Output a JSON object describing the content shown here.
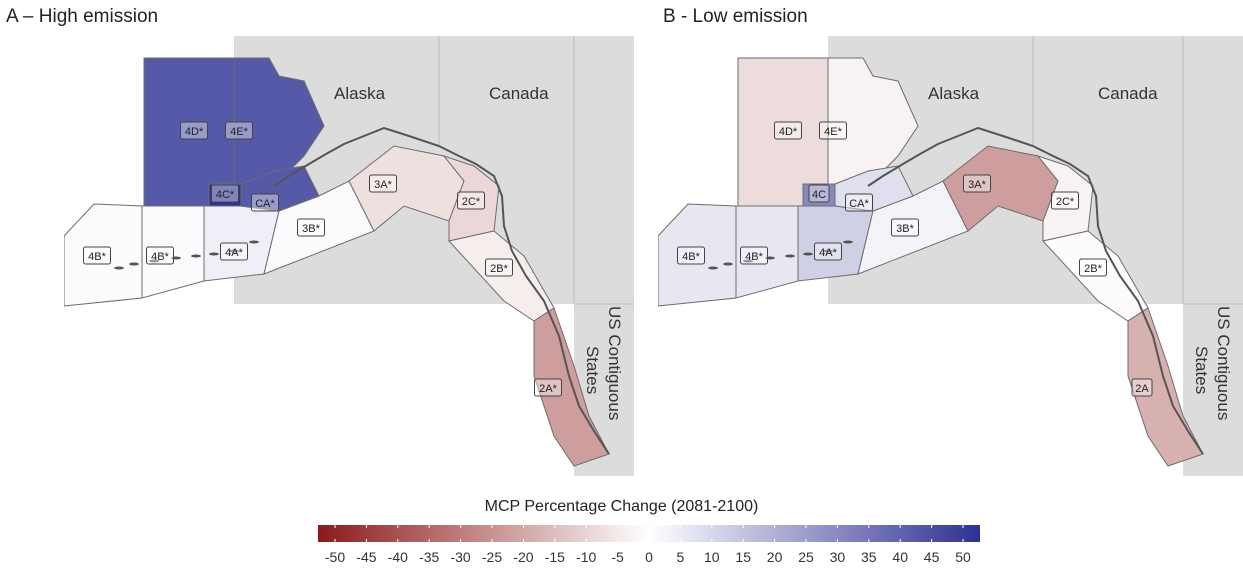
{
  "panels": [
    {
      "id": "a",
      "title": "A – High emission",
      "regions": {
        "alaska": "Alaska",
        "canada": "Canada",
        "us_line1": "US Contiguous",
        "us_line2": "States"
      },
      "zones": {
        "4D": "4D*",
        "4E": "4E*",
        "4C": "4C*",
        "CA": "CA*",
        "3A": "3A*",
        "2C": "2C*",
        "3B": "3B*",
        "4A": "4A*",
        "4Bw": "4B*",
        "4Be": "4B*",
        "2B": "2B*",
        "2A": "2A*"
      },
      "zone_change": {
        "4D": 42,
        "4E": 42,
        "4C": 52,
        "CA": 42,
        "3A": -7,
        "2C": -9,
        "3B": 1,
        "4A": 4,
        "4Bw": 1,
        "4Be": 1,
        "2B": -4,
        "2A": -22
      }
    },
    {
      "id": "b",
      "title": "B - Low emission",
      "regions": {
        "alaska": "Alaska",
        "canada": "Canada",
        "us_line1": "US Contiguous",
        "us_line2": "States"
      },
      "zones": {
        "4D": "4D*",
        "4E": "4E*",
        "4C": "4C",
        "CA": "CA*",
        "3A": "3A*",
        "2C": "2C*",
        "3B": "3B*",
        "4A": "4A*",
        "4Bw": "4B*",
        "4Be": "4B*",
        "2B": "2B*",
        "2A": "2A"
      },
      "zone_change": {
        "4D": -8,
        "4E": -3,
        "4C": 30,
        "CA": 8,
        "3A": -22,
        "2C": -3,
        "3B": 3,
        "4A": 12,
        "4Bw": 6,
        "4Be": 6,
        "2B": -1,
        "2A": -18
      }
    }
  ],
  "legend": {
    "title": "MCP Percentage Change (2081-2100)",
    "ticks": [
      "-50",
      "-45",
      "-40",
      "-35",
      "-30",
      "-25",
      "-20",
      "-15",
      "-10",
      "-5",
      "0",
      "5",
      "10",
      "15",
      "20",
      "25",
      "30",
      "35",
      "40",
      "45",
      "50"
    ],
    "colors": {
      "low": "#8b1a1a",
      "mid": "#ffffff",
      "high": "#2e3192"
    }
  }
}
